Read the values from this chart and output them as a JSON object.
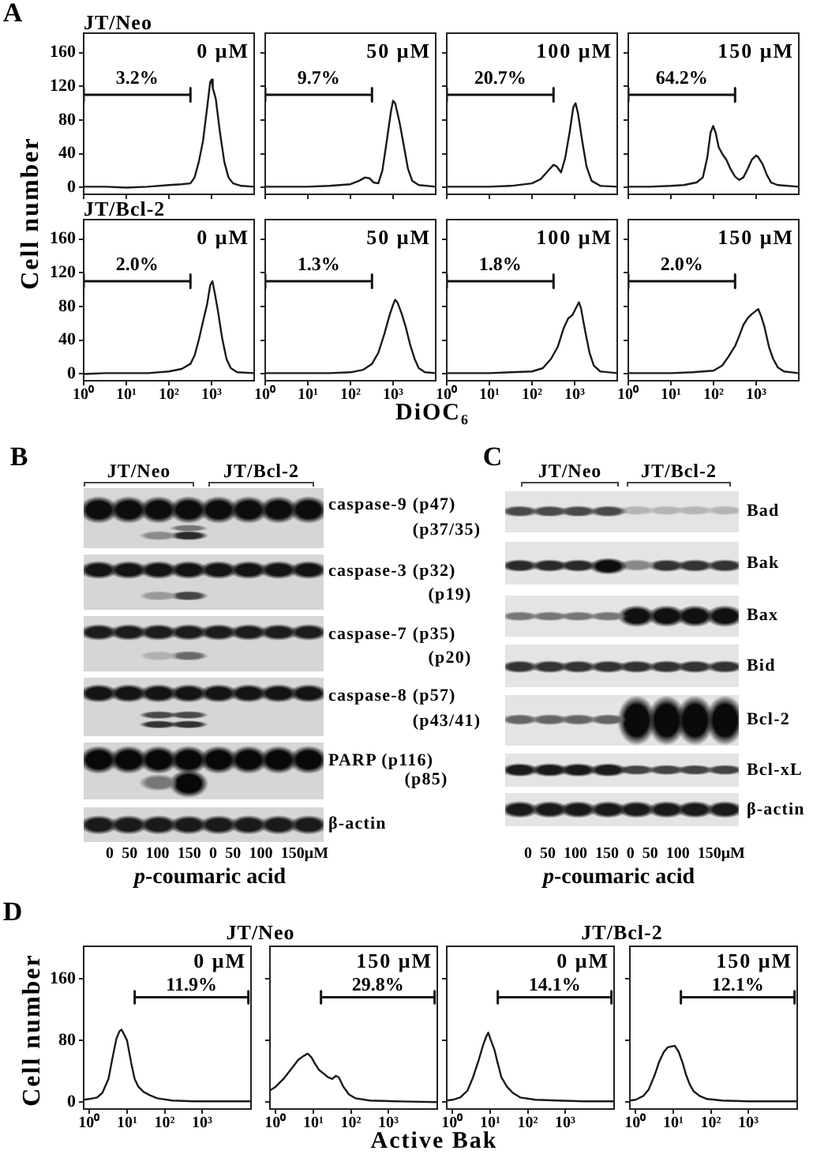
{
  "chart_data": [
    {
      "type": "line",
      "title": "0 μM",
      "subtitle": "JT/Neo",
      "annotations": [
        "A"
      ],
      "series": [
        {
          "x": [
            1,
            3.2,
            10,
            32,
            100,
            200,
            320,
            400,
            500,
            630,
            790,
            930,
            1000,
            1070,
            1260,
            1580,
            2000,
            2500,
            3200,
            5000,
            10000
          ],
          "values": [
            1,
            1,
            0,
            1,
            3,
            4,
            5,
            12,
            30,
            55,
            95,
            125,
            128,
            118,
            105,
            65,
            30,
            12,
            5,
            2,
            1
          ],
          "color": "#1a1a1a"
        },
        {
          "name": "3.2%",
          "x": [
            1,
            1,
            1,
            320,
            320,
            320
          ],
          "values": [
            102,
            118,
            110,
            110,
            118,
            102
          ],
          "color": "#111111"
        }
      ],
      "log": "x",
      "xlim": [
        1,
        10000
      ],
      "xticks": [
        {
          "value": 1,
          "label": null
        },
        {
          "value": 10,
          "label": null
        },
        {
          "value": 100,
          "label": null
        },
        {
          "value": 1000,
          "label": null
        }
      ],
      "ylim": [
        -8,
        183
      ],
      "yticks": [
        0,
        40,
        80,
        120,
        160
      ],
      "tick_labels": "y"
    },
    {
      "type": "line",
      "title": "50 μM",
      "series": [
        {
          "x": [
            1,
            3.2,
            10,
            32,
            100,
            160,
            220,
            280,
            350,
            450,
            560,
            710,
            890,
            1000,
            1120,
            1410,
            1780,
            2240,
            2820,
            4000,
            10000
          ],
          "values": [
            1,
            1,
            1,
            2,
            4,
            8,
            12,
            11,
            6,
            5,
            20,
            55,
            90,
            103,
            100,
            78,
            50,
            22,
            8,
            3,
            1
          ],
          "color": "#1a1a1a"
        },
        {
          "name": "9.7%",
          "x": [
            1,
            1,
            1,
            320,
            320,
            320
          ],
          "values": [
            102,
            118,
            110,
            110,
            118,
            102
          ],
          "color": "#111111"
        }
      ],
      "log": "x",
      "xlim": [
        1,
        10000
      ],
      "xticks": [
        {
          "value": 1,
          "label": null
        },
        {
          "value": 10,
          "label": null
        },
        {
          "value": 100,
          "label": null
        },
        {
          "value": 1000,
          "label": null
        }
      ],
      "ylim": [
        -8,
        183
      ],
      "yticks": [
        0,
        40,
        80,
        120,
        160
      ],
      "tick_labels": false
    },
    {
      "type": "line",
      "title": "100 μM",
      "series": [
        {
          "x": [
            1,
            3.2,
            10,
            32,
            100,
            160,
            220,
            320,
            380,
            480,
            600,
            760,
            930,
            1050,
            1200,
            1510,
            1900,
            2500,
            4000,
            10000
          ],
          "values": [
            1,
            1,
            1,
            2,
            5,
            10,
            18,
            27,
            25,
            18,
            35,
            65,
            95,
            100,
            88,
            55,
            25,
            8,
            2,
            1
          ],
          "color": "#1a1a1a"
        },
        {
          "name": "20.7%",
          "x": [
            1,
            1,
            1,
            320,
            320,
            320
          ],
          "values": [
            102,
            118,
            110,
            110,
            118,
            102
          ],
          "color": "#111111"
        }
      ],
      "log": "x",
      "xlim": [
        1,
        10000
      ],
      "xticks": [
        {
          "value": 1,
          "label": null
        },
        {
          "value": 10,
          "label": null
        },
        {
          "value": 100,
          "label": null
        },
        {
          "value": 1000,
          "label": null
        }
      ],
      "ylim": [
        -8,
        183
      ],
      "yticks": [
        0,
        40,
        80,
        120,
        160
      ],
      "tick_labels": false
    },
    {
      "type": "line",
      "title": "150 μM",
      "series": [
        {
          "x": [
            1,
            3.2,
            10,
            20,
            40,
            56,
            71,
            85,
            98,
            112,
            132,
            160,
            200,
            250,
            320,
            400,
            500,
            630,
            790,
            1000,
            1120,
            1410,
            1780,
            2240,
            3200,
            10000
          ],
          "values": [
            1,
            1,
            2,
            3,
            6,
            12,
            35,
            65,
            73,
            65,
            48,
            40,
            33,
            22,
            13,
            9,
            12,
            22,
            33,
            38,
            36,
            28,
            15,
            6,
            3,
            1
          ],
          "color": "#1a1a1a"
        },
        {
          "name": "64.2%",
          "x": [
            1,
            1,
            1,
            320,
            320,
            320
          ],
          "values": [
            102,
            118,
            110,
            110,
            118,
            102
          ],
          "color": "#111111"
        }
      ],
      "log": "x",
      "xlim": [
        1,
        10000
      ],
      "xticks": [
        {
          "value": 1,
          "label": null
        },
        {
          "value": 10,
          "label": null
        },
        {
          "value": 100,
          "label": null
        },
        {
          "value": 1000,
          "label": null
        }
      ],
      "ylim": [
        -8,
        183
      ],
      "yticks": [
        0,
        40,
        80,
        120,
        160
      ],
      "tick_labels": false
    },
    {
      "type": "line",
      "title": "0 μM",
      "subtitle": "JT/Bcl-2",
      "ylabel": "Cell number",
      "series": [
        {
          "x": [
            1,
            3.2,
            10,
            32,
            100,
            200,
            320,
            400,
            500,
            630,
            790,
            930,
            1050,
            1200,
            1410,
            1780,
            2240,
            2820,
            4000,
            10000
          ],
          "values": [
            0,
            1,
            1,
            1,
            3,
            6,
            12,
            22,
            40,
            62,
            83,
            105,
            110,
            95,
            75,
            42,
            18,
            7,
            2,
            1
          ],
          "color": "#1a1a1a"
        },
        {
          "name": "2.0%",
          "x": [
            1,
            1,
            1,
            320,
            320,
            320
          ],
          "values": [
            102,
            118,
            110,
            110,
            118,
            102
          ],
          "color": "#111111"
        }
      ],
      "log": "x",
      "xlim": [
        1,
        10000
      ],
      "xticks": [
        {
          "value": 1,
          "label": "10⁰"
        },
        {
          "value": 10,
          "label": "10¹"
        },
        {
          "value": 100,
          "label": "10²"
        },
        {
          "value": 1000,
          "label": "10³"
        }
      ],
      "ylim": [
        -8,
        183
      ],
      "yticks": [
        0,
        40,
        80,
        120,
        160
      ]
    },
    {
      "type": "line",
      "title": "50 μM",
      "xlabel": "DiOC₆",
      "series": [
        {
          "x": [
            1,
            3.2,
            10,
            32,
            100,
            200,
            320,
            450,
            630,
            830,
            1000,
            1120,
            1260,
            1580,
            2000,
            2500,
            3200,
            4000,
            5600,
            10000
          ],
          "values": [
            1,
            1,
            1,
            1,
            2,
            5,
            12,
            25,
            48,
            70,
            82,
            88,
            85,
            72,
            55,
            35,
            18,
            7,
            2,
            1
          ],
          "color": "#1a1a1a"
        },
        {
          "name": "1.3%",
          "x": [
            1,
            1,
            1,
            320,
            320,
            320
          ],
          "values": [
            102,
            118,
            110,
            110,
            118,
            102
          ],
          "color": "#111111"
        }
      ],
      "log": "x",
      "xlim": [
        1,
        10000
      ],
      "xticks": [
        {
          "value": 1,
          "label": "10⁰"
        },
        {
          "value": 10,
          "label": "10¹"
        },
        {
          "value": 100,
          "label": "10²"
        },
        {
          "value": 1000,
          "label": "10³"
        }
      ],
      "ylim": [
        -8,
        183
      ],
      "yticks": [
        0,
        40,
        80,
        120,
        160
      ],
      "tick_labels": "x"
    },
    {
      "type": "line",
      "title": "100 μM",
      "series": [
        {
          "x": [
            1,
            3.2,
            10,
            32,
            100,
            180,
            280,
            400,
            560,
            710,
            890,
            1120,
            1260,
            1410,
            1780,
            2240,
            2820,
            4000,
            10000
          ],
          "values": [
            1,
            1,
            1,
            2,
            3,
            7,
            18,
            32,
            55,
            66,
            70,
            80,
            85,
            78,
            50,
            25,
            10,
            3,
            1
          ],
          "color": "#1a1a1a"
        },
        {
          "name": "1.8%",
          "x": [
            1,
            1,
            1,
            320,
            320,
            320
          ],
          "values": [
            102,
            118,
            110,
            110,
            118,
            102
          ],
          "color": "#111111"
        }
      ],
      "log": "x",
      "xlim": [
        1,
        10000
      ],
      "xticks": [
        {
          "value": 1,
          "label": "10⁰"
        },
        {
          "value": 10,
          "label": "10¹"
        },
        {
          "value": 100,
          "label": "10²"
        },
        {
          "value": 1000,
          "label": "10³"
        }
      ],
      "ylim": [
        -8,
        183
      ],
      "yticks": [
        0,
        40,
        80,
        120,
        160
      ],
      "tick_labels": "x"
    },
    {
      "type": "line",
      "title": "150 μM",
      "series": [
        {
          "x": [
            1,
            3.2,
            10,
            32,
            100,
            160,
            220,
            320,
            400,
            500,
            630,
            790,
            1000,
            1120,
            1320,
            1580,
            2000,
            2500,
            3200,
            4500,
            10000
          ],
          "values": [
            1,
            1,
            1,
            2,
            4,
            10,
            20,
            33,
            45,
            58,
            66,
            71,
            75,
            77,
            68,
            55,
            32,
            18,
            8,
            3,
            1
          ],
          "color": "#1a1a1a"
        },
        {
          "name": "2.0%",
          "x": [
            1,
            1,
            1,
            320,
            320,
            320
          ],
          "values": [
            102,
            118,
            110,
            110,
            118,
            102
          ],
          "color": "#111111"
        }
      ],
      "log": "x",
      "xlim": [
        1,
        10000
      ],
      "xticks": [
        {
          "value": 1,
          "label": "10⁰"
        },
        {
          "value": 10,
          "label": "10¹"
        },
        {
          "value": 100,
          "label": "10²"
        },
        {
          "value": 1000,
          "label": "10³"
        }
      ],
      "ylim": [
        -8,
        183
      ],
      "yticks": [
        0,
        40,
        80,
        120,
        160
      ],
      "tick_labels": "x"
    },
    {
      "type": "other",
      "annotations": [
        "B",
        "JT/Neo",
        "JT/Bcl-2",
        "caspase-9 (p47)",
        "(p37/35)",
        "caspase-3 (p32)",
        "(p19)",
        "caspase-7 (p35)",
        "(p20)",
        "caspase-8 (p57)",
        "(p43/41)",
        "PARP (p116)",
        "(p85)",
        "β-actin",
        "0 50 100 150 0 50 100 150μM",
        "p-coumaric acid"
      ]
    },
    {
      "type": "other",
      "annotations": [
        "C",
        "JT/Neo",
        "JT/Bcl-2",
        "Bad",
        "Bak",
        "Bax",
        "Bid",
        "Bcl-2",
        "Bcl-xL",
        "β-actin",
        "0 50 100 150 0 50 100 150μM",
        "p-coumaric acid"
      ]
    },
    {
      "type": "line",
      "title": "0 μM",
      "subtitle": "JT/Neo",
      "ylabel": "Cell number",
      "annotations": [
        "D"
      ],
      "series": [
        {
          "x": [
            0.7,
            1,
            1.6,
            2.2,
            3.2,
            4.2,
            5.2,
            6.3,
            7.1,
            8.3,
            10,
            13,
            16,
            20,
            28,
            40,
            63,
            160,
            630,
            3200,
            20000
          ],
          "values": [
            3,
            4,
            6,
            12,
            30,
            60,
            82,
            92,
            94,
            88,
            80,
            50,
            30,
            20,
            13,
            9,
            5,
            2,
            1,
            1,
            1
          ],
          "color": "#1a1a1a"
        },
        {
          "name": "11.9%",
          "x": [
            16,
            16,
            16,
            17000,
            17000,
            17000
          ],
          "values": [
            128,
            144,
            136,
            136,
            144,
            128
          ],
          "color": "#111111"
        }
      ],
      "log": "x",
      "xlim": [
        0.7,
        20000
      ],
      "xticks": [
        {
          "value": 1,
          "label": "10⁰"
        },
        {
          "value": 10,
          "label": "10¹"
        },
        {
          "value": 100,
          "label": "10²"
        },
        {
          "value": 1000,
          "label": "10³"
        }
      ],
      "ylim": [
        -9,
        202
      ],
      "yticks": [
        0,
        80,
        160
      ]
    },
    {
      "type": "line",
      "title": "150 μM",
      "xlabel": "Active Bak",
      "series": [
        {
          "x": [
            0.7,
            1,
            1.6,
            2.5,
            4,
            5.6,
            7.1,
            8.9,
            11,
            14,
            20,
            25,
            32,
            40,
            48,
            63,
            89,
            130,
            320,
            1600,
            20000
          ],
          "values": [
            15,
            20,
            30,
            42,
            55,
            60,
            63,
            58,
            50,
            42,
            36,
            32,
            30,
            34,
            32,
            20,
            10,
            5,
            2,
            1,
            0
          ],
          "color": "#1a1a1a"
        },
        {
          "name": "29.8%",
          "x": [
            16,
            16,
            16,
            17000,
            17000,
            17000
          ],
          "values": [
            128,
            144,
            136,
            136,
            144,
            128
          ],
          "color": "#111111"
        }
      ],
      "log": "x",
      "xlim": [
        0.7,
        20000
      ],
      "xticks": [
        {
          "value": 1,
          "label": "10⁰"
        },
        {
          "value": 10,
          "label": "10¹"
        },
        {
          "value": 100,
          "label": "10²"
        },
        {
          "value": 1000,
          "label": "10³"
        }
      ],
      "ylim": [
        -9,
        202
      ],
      "yticks": [
        0,
        80,
        160
      ],
      "tick_labels": "x"
    },
    {
      "type": "line",
      "title": "0 μM",
      "subtitle": "JT/Bcl-2",
      "series": [
        {
          "x": [
            0.7,
            1,
            1.6,
            2.5,
            3.5,
            5,
            6.6,
            7.9,
            8.9,
            10.5,
            13,
            16,
            20,
            28,
            40,
            63,
            160,
            630,
            3200,
            20000
          ],
          "values": [
            2,
            3,
            6,
            15,
            32,
            55,
            75,
            85,
            90,
            80,
            68,
            50,
            32,
            20,
            12,
            6,
            3,
            2,
            1,
            1
          ],
          "color": "#1a1a1a"
        },
        {
          "name": "14.1%",
          "x": [
            16,
            16,
            16,
            17000,
            17000,
            17000
          ],
          "values": [
            128,
            144,
            136,
            136,
            144,
            128
          ],
          "color": "#111111"
        }
      ],
      "log": "x",
      "xlim": [
        0.7,
        20000
      ],
      "xticks": [
        {
          "value": 1,
          "label": "10⁰"
        },
        {
          "value": 10,
          "label": "10¹"
        },
        {
          "value": 100,
          "label": "10²"
        },
        {
          "value": 1000,
          "label": "10³"
        }
      ],
      "ylim": [
        -9,
        202
      ],
      "yticks": [
        0,
        80,
        160
      ],
      "tick_labels": "x"
    },
    {
      "type": "line",
      "title": "150 μM",
      "series": [
        {
          "x": [
            0.7,
            1,
            1.6,
            2.2,
            3.2,
            4.2,
            5.6,
            7.1,
            8.9,
            11,
            14,
            18,
            22,
            28,
            35,
            50,
            79,
            200,
            1000,
            20000
          ],
          "values": [
            2,
            3,
            8,
            16,
            35,
            52,
            65,
            71,
            72,
            73,
            65,
            50,
            35,
            22,
            14,
            8,
            4,
            2,
            1,
            1
          ],
          "color": "#1a1a1a"
        },
        {
          "name": "12.1%",
          "x": [
            16,
            16,
            16,
            17000,
            17000,
            17000
          ],
          "values": [
            128,
            144,
            136,
            136,
            144,
            128
          ],
          "color": "#111111"
        }
      ],
      "log": "x",
      "xlim": [
        0.7,
        20000
      ],
      "xticks": [
        {
          "value": 1,
          "label": "10⁰"
        },
        {
          "value": 10,
          "label": "10¹"
        },
        {
          "value": 100,
          "label": "10²"
        },
        {
          "value": 1000,
          "label": "10³"
        }
      ],
      "ylim": [
        -9,
        202
      ],
      "yticks": [
        0,
        80,
        160
      ],
      "tick_labels": "x"
    }
  ]
}
